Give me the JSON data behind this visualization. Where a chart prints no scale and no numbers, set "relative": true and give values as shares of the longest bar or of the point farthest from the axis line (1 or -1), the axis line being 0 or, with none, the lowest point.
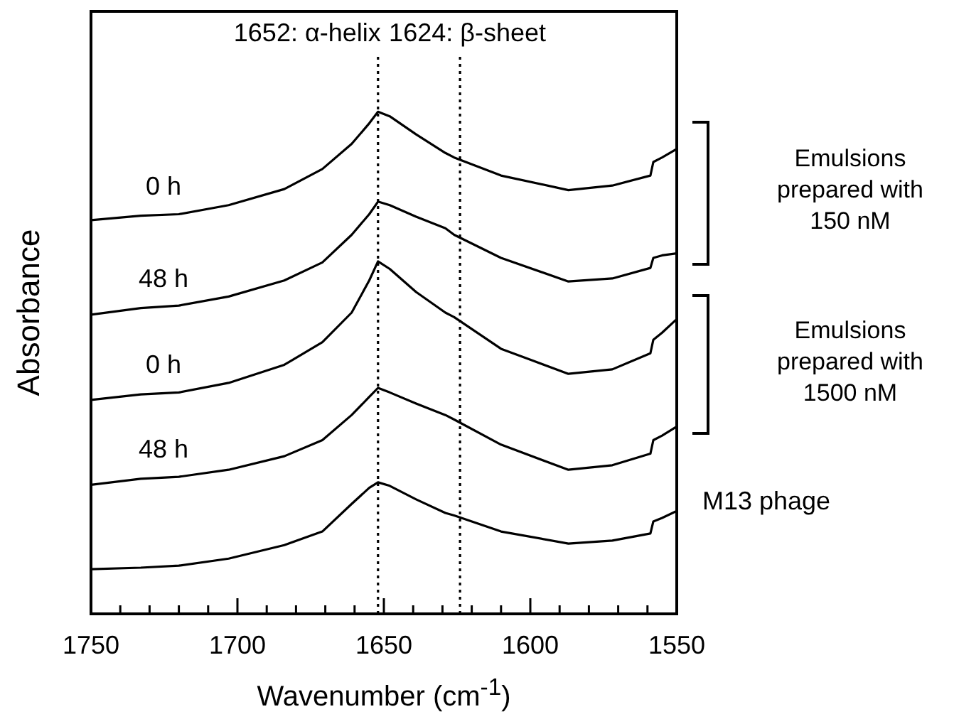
{
  "chart_data": {
    "type": "line",
    "relative": true,
    "xlabel": "Wavenumber (cm$^{-1}$)",
    "ylabel": "Absorbance",
    "x": [
      1750,
      1733,
      1720,
      1703,
      1684,
      1671,
      1661,
      1655,
      1652,
      1648,
      1639,
      1629,
      1626,
      1610,
      1587,
      1572,
      1559,
      1558,
      1555,
      1550
    ],
    "xlim": [
      1750,
      1550
    ],
    "xticks": [
      1750,
      {
        "value": 1740,
        "label": null
      },
      {
        "value": 1730,
        "label": null
      },
      {
        "value": 1720,
        "label": null
      },
      {
        "value": 1710,
        "label": null
      },
      1700,
      {
        "value": 1690,
        "label": null
      },
      {
        "value": 1680,
        "label": null
      },
      {
        "value": 1670,
        "label": null
      },
      {
        "value": 1660,
        "label": null
      },
      1650,
      {
        "value": 1640,
        "label": null
      },
      {
        "value": 1630,
        "label": null
      },
      {
        "value": 1620,
        "label": null
      },
      {
        "value": 1610,
        "label": null
      },
      1600,
      {
        "value": 1590,
        "label": null
      },
      {
        "value": 1580,
        "label": null
      },
      {
        "value": 1570,
        "label": null
      },
      {
        "value": 1560,
        "label": null
      },
      1550
    ],
    "tick_labels": "x",
    "series": [
      {
        "name": "0 h",
        "color": "#000000",
        "values": [
          0.784,
          0.793,
          0.796,
          0.814,
          0.846,
          0.886,
          0.936,
          0.977,
          1.0,
          0.991,
          0.955,
          0.918,
          0.909,
          0.873,
          0.844,
          0.853,
          0.873,
          0.9,
          0.909,
          0.926
        ]
      },
      {
        "name": "48 h",
        "color": "#000000",
        "values": [
          0.596,
          0.609,
          0.614,
          0.632,
          0.664,
          0.7,
          0.755,
          0.796,
          0.821,
          0.814,
          0.791,
          0.768,
          0.755,
          0.709,
          0.662,
          0.668,
          0.689,
          0.709,
          0.714,
          0.718
        ]
      },
      {
        "name": "0 h",
        "color": "#000000",
        "values": [
          0.426,
          0.437,
          0.441,
          0.46,
          0.496,
          0.541,
          0.6,
          0.664,
          0.702,
          0.687,
          0.641,
          0.6,
          0.591,
          0.528,
          0.478,
          0.487,
          0.519,
          0.546,
          0.56,
          0.587
        ]
      },
      {
        "name": "48 h",
        "color": "#000000",
        "values": [
          0.257,
          0.269,
          0.273,
          0.287,
          0.314,
          0.346,
          0.396,
          0.432,
          0.45,
          0.441,
          0.419,
          0.396,
          0.387,
          0.337,
          0.287,
          0.296,
          0.319,
          0.346,
          0.355,
          0.373
        ]
      },
      {
        "name": "M13 phage",
        "color": "#000000",
        "values": [
          0.089,
          0.092,
          0.096,
          0.11,
          0.137,
          0.164,
          0.219,
          0.251,
          0.262,
          0.255,
          0.228,
          0.201,
          0.196,
          0.164,
          0.14,
          0.146,
          0.16,
          0.184,
          0.191,
          0.205
        ]
      }
    ],
    "ref_lines": [
      {
        "axis": "x",
        "value": 1652,
        "label": "1652: α-helix",
        "color": "#000000",
        "line_style": "dotted"
      },
      {
        "axis": "x",
        "value": 1624,
        "label": "1624: β-sheet",
        "color": "#000000",
        "line_style": "dotted"
      }
    ],
    "annotations": [
      "Emulsions prepared with 150 nM",
      "Emulsions prepared with 1500 nM"
    ]
  }
}
